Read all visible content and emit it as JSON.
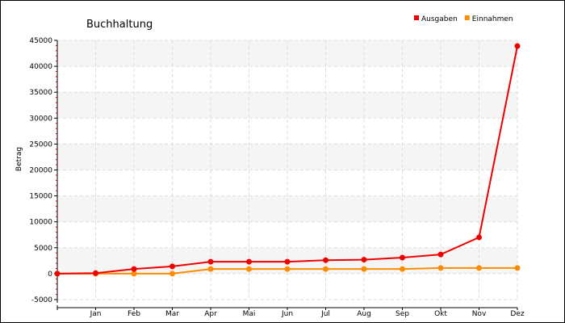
{
  "chart_data": {
    "type": "line",
    "title": "Buchhaltung",
    "xlabel": "",
    "ylabel": "Betrag",
    "categories": [
      "",
      "Jan",
      "Feb",
      "Mar",
      "Apr",
      "Mai",
      "Jun",
      "Jul",
      "Aug",
      "Sep",
      "Okt",
      "Nov",
      "Dez"
    ],
    "ylim": [
      -5000,
      45000
    ],
    "yticks": [
      -5000,
      0,
      5000,
      10000,
      15000,
      20000,
      25000,
      30000,
      35000,
      40000,
      45000
    ],
    "grid": true,
    "legend_position": "top-right",
    "series": [
      {
        "name": "Ausgaben",
        "color": "#ee0000",
        "values": [
          0,
          100,
          900,
          1400,
          2300,
          2300,
          2300,
          2600,
          2700,
          3100,
          3700,
          7000,
          43900
        ]
      },
      {
        "name": "Einnahmen",
        "color": "#ff8c00",
        "values": [
          0,
          0,
          0,
          0,
          900,
          900,
          900,
          900,
          900,
          900,
          1100,
          1100,
          1100
        ]
      }
    ]
  }
}
